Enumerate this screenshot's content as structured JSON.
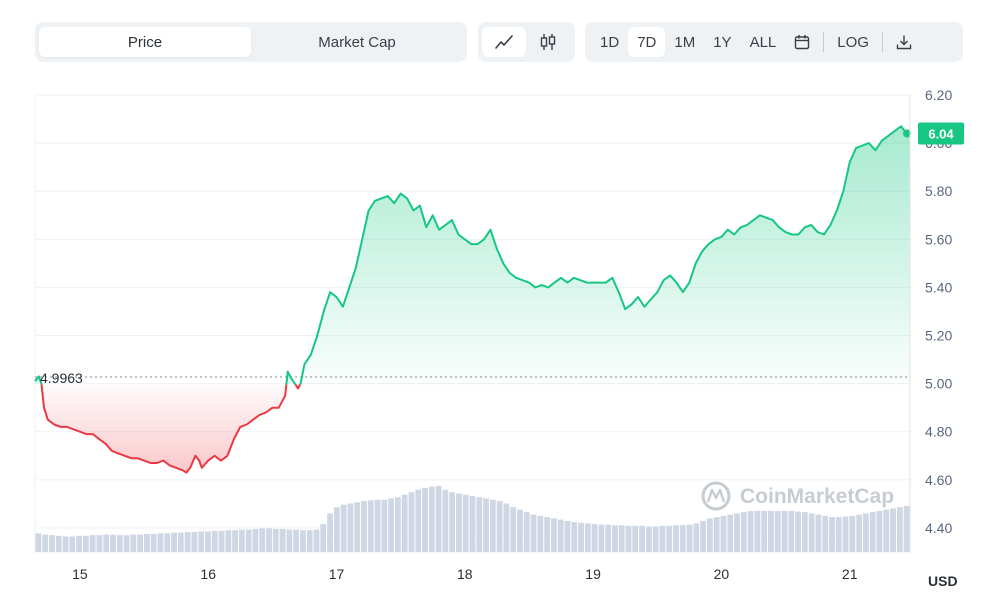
{
  "toolbar": {
    "metric_tabs": [
      {
        "label": "Price",
        "active": true
      },
      {
        "label": "Market Cap",
        "active": false
      }
    ],
    "chart_types": [
      {
        "icon": "line-chart-icon",
        "active": true
      },
      {
        "icon": "candlestick-icon",
        "active": false
      }
    ],
    "ranges": [
      {
        "label": "1D",
        "active": false
      },
      {
        "label": "7D",
        "active": true
      },
      {
        "label": "1M",
        "active": false
      },
      {
        "label": "1Y",
        "active": false
      },
      {
        "label": "ALL",
        "active": false
      }
    ],
    "calendar_icon": "calendar-icon",
    "log_label": "LOG",
    "download_icon": "download-icon"
  },
  "watermark": "CoinMarketCap",
  "colors": {
    "up": "#16c784",
    "down": "#ea3943",
    "volume": "#cfd6e4",
    "grid": "#eff2f5"
  },
  "chart_data": {
    "type": "line",
    "currency_label": "USD",
    "y_ticks": [
      "6.20",
      "6.00",
      "5.80",
      "5.60",
      "5.40",
      "5.20",
      "5.00",
      "4.80",
      "4.60",
      "4.40"
    ],
    "ylim": [
      4.3,
      6.2
    ],
    "x_ticks": [
      "15",
      "16",
      "17",
      "18",
      "19",
      "20",
      "21"
    ],
    "xlim": [
      14.65,
      21.47
    ],
    "baseline": {
      "value": 4.9963,
      "label": "4.9963"
    },
    "current_price": {
      "value": 6.04,
      "label": "6.04"
    },
    "grid": true,
    "series": [
      {
        "x": [
          14.65,
          14.68,
          14.7,
          14.72,
          14.75,
          14.8,
          14.85,
          14.9,
          14.95,
          15.0,
          15.05,
          15.1,
          15.15,
          15.2,
          15.25,
          15.3,
          15.35,
          15.4,
          15.45,
          15.5,
          15.55,
          15.6,
          15.65,
          15.7,
          15.75,
          15.8,
          15.83,
          15.86,
          15.9,
          15.93,
          15.95,
          16.0,
          16.05,
          16.1,
          16.15,
          16.2,
          16.25,
          16.3,
          16.35,
          16.4,
          16.45,
          16.5,
          16.55,
          16.6,
          16.62,
          16.65,
          16.7,
          16.72,
          16.75,
          16.8,
          16.85,
          16.9,
          16.95,
          17.0,
          17.05,
          17.1,
          17.15,
          17.2,
          17.25,
          17.3,
          17.35,
          17.4,
          17.45,
          17.5,
          17.55,
          17.6,
          17.65,
          17.7,
          17.75,
          17.8,
          17.85,
          17.9,
          17.95,
          18.0,
          18.05,
          18.1,
          18.15,
          18.2,
          18.25,
          18.3,
          18.35,
          18.4,
          18.45,
          18.5,
          18.55,
          18.6,
          18.65,
          18.7,
          18.75,
          18.8,
          18.85,
          18.9,
          18.95,
          19.0,
          19.05,
          19.1,
          19.15,
          19.2,
          19.25,
          19.3,
          19.35,
          19.4,
          19.45,
          19.5,
          19.55,
          19.6,
          19.65,
          19.7,
          19.75,
          19.8,
          19.85,
          19.9,
          19.95,
          20.0,
          20.05,
          20.1,
          20.15,
          20.2,
          20.25,
          20.3,
          20.35,
          20.4,
          20.45,
          20.5,
          20.55,
          20.6,
          20.65,
          20.7,
          20.75,
          20.8,
          20.85,
          20.9,
          20.95,
          21.0,
          21.05,
          21.1,
          21.15,
          21.2,
          21.25,
          21.3,
          21.35,
          21.4,
          21.43,
          21.47
        ],
        "y": [
          5.01,
          5.03,
          5.0,
          4.9,
          4.85,
          4.83,
          4.82,
          4.82,
          4.81,
          4.8,
          4.79,
          4.79,
          4.77,
          4.75,
          4.72,
          4.71,
          4.7,
          4.69,
          4.69,
          4.68,
          4.67,
          4.67,
          4.68,
          4.66,
          4.65,
          4.64,
          4.63,
          4.65,
          4.7,
          4.68,
          4.65,
          4.68,
          4.7,
          4.68,
          4.7,
          4.77,
          4.82,
          4.83,
          4.85,
          4.87,
          4.88,
          4.9,
          4.9,
          4.95,
          5.05,
          5.02,
          4.98,
          5.0,
          5.08,
          5.12,
          5.2,
          5.3,
          5.38,
          5.36,
          5.32,
          5.4,
          5.48,
          5.6,
          5.72,
          5.76,
          5.77,
          5.78,
          5.75,
          5.79,
          5.77,
          5.72,
          5.74,
          5.65,
          5.7,
          5.64,
          5.66,
          5.68,
          5.62,
          5.6,
          5.58,
          5.58,
          5.6,
          5.64,
          5.56,
          5.5,
          5.46,
          5.44,
          5.43,
          5.42,
          5.4,
          5.41,
          5.4,
          5.42,
          5.44,
          5.42,
          5.44,
          5.43,
          5.42,
          5.42,
          5.42,
          5.42,
          5.44,
          5.38,
          5.31,
          5.33,
          5.36,
          5.32,
          5.35,
          5.38,
          5.43,
          5.45,
          5.42,
          5.38,
          5.42,
          5.5,
          5.55,
          5.58,
          5.6,
          5.61,
          5.64,
          5.62,
          5.65,
          5.66,
          5.68,
          5.7,
          5.69,
          5.68,
          5.65,
          5.63,
          5.62,
          5.62,
          5.65,
          5.66,
          5.63,
          5.62,
          5.66,
          5.72,
          5.8,
          5.92,
          5.98,
          5.99,
          6.0,
          5.97,
          6.01,
          6.03,
          6.05,
          6.07,
          6.05,
          6.04
        ]
      }
    ],
    "volume": [
      0.3,
      0.28,
      0.27,
      0.26,
      0.25,
      0.25,
      0.26,
      0.26,
      0.27,
      0.27,
      0.28,
      0.28,
      0.27,
      0.27,
      0.28,
      0.28,
      0.29,
      0.29,
      0.3,
      0.3,
      0.31,
      0.31,
      0.32,
      0.32,
      0.33,
      0.33,
      0.34,
      0.34,
      0.35,
      0.35,
      0.36,
      0.36,
      0.37,
      0.38,
      0.38,
      0.37,
      0.37,
      0.36,
      0.36,
      0.35,
      0.35,
      0.36,
      0.45,
      0.62,
      0.72,
      0.76,
      0.78,
      0.8,
      0.82,
      0.83,
      0.84,
      0.84,
      0.86,
      0.88,
      0.92,
      0.96,
      1.0,
      1.03,
      1.05,
      1.06,
      1.0,
      0.96,
      0.94,
      0.92,
      0.9,
      0.88,
      0.86,
      0.84,
      0.82,
      0.78,
      0.72,
      0.68,
      0.64,
      0.6,
      0.58,
      0.56,
      0.54,
      0.52,
      0.5,
      0.48,
      0.47,
      0.46,
      0.45,
      0.44,
      0.44,
      0.43,
      0.43,
      0.42,
      0.42,
      0.42,
      0.41,
      0.41,
      0.42,
      0.42,
      0.43,
      0.43,
      0.44,
      0.46,
      0.5,
      0.54,
      0.56,
      0.58,
      0.6,
      0.62,
      0.64,
      0.66,
      0.66,
      0.66,
      0.66,
      0.66,
      0.66,
      0.66,
      0.65,
      0.64,
      0.62,
      0.6,
      0.58,
      0.56,
      0.56,
      0.57,
      0.58,
      0.6,
      0.62,
      0.64,
      0.66,
      0.68,
      0.7,
      0.72,
      0.74
    ]
  }
}
